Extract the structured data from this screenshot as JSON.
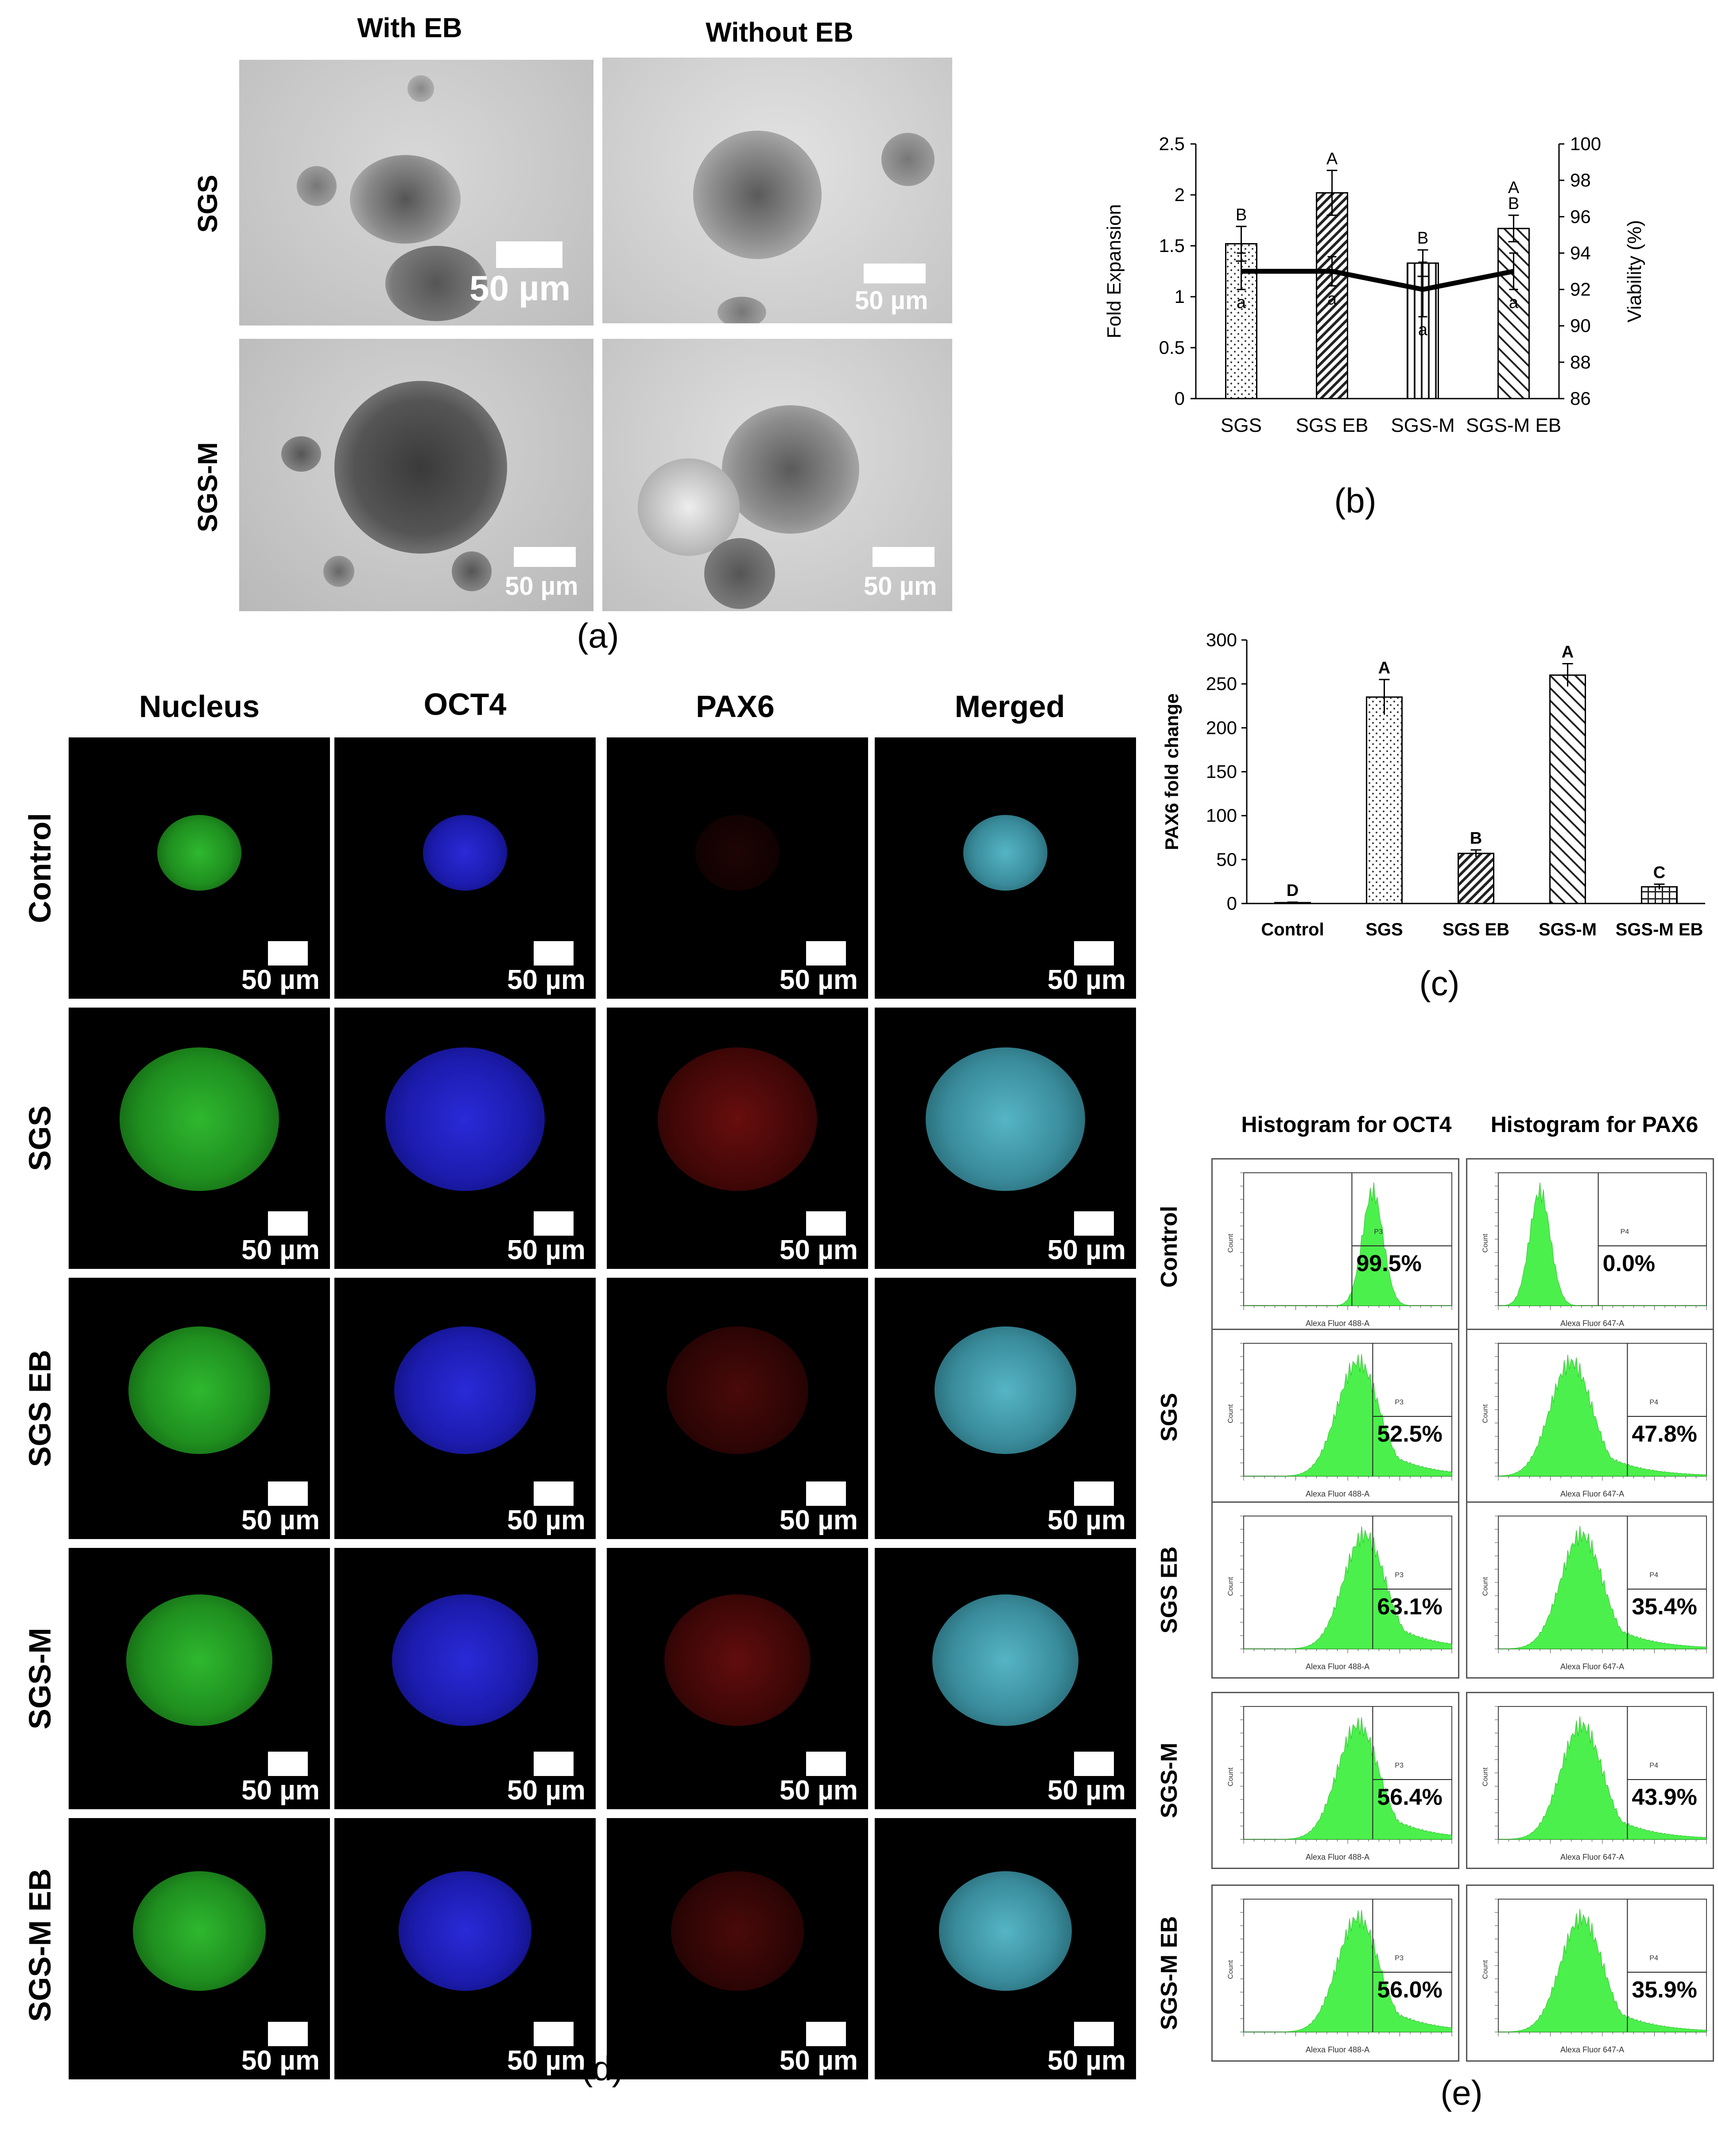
{
  "panel_a": {
    "col_headers": [
      "With EB",
      "Without EB"
    ],
    "row_labels": [
      "SGS",
      "SGS-M"
    ],
    "scale_labels": [
      "50 µm",
      "50 µm",
      "50 µm",
      "50 µm"
    ],
    "caption": "(a)"
  },
  "panel_b": {
    "caption": "(b)"
  },
  "panel_c": {
    "caption": "(c)"
  },
  "panel_d": {
    "col_headers": [
      "Nucleus",
      "OCT4",
      "PAX6",
      "Merged"
    ],
    "row_labels": [
      "Control",
      "SGS",
      "SGS EB",
      "SGS-M",
      "SGS-M EB"
    ],
    "scale_label": "50 µm",
    "caption": "(d)"
  },
  "panel_e": {
    "col_headers": [
      "Histogram for OCT4",
      "Histogram for PAX6"
    ],
    "row_labels": [
      "Control",
      "SGS",
      "SGS EB",
      "SGS-M",
      "SGS-M EB"
    ],
    "oct4_percent": [
      "99.5%",
      "52.5%",
      "63.1%",
      "56.4%",
      "56.0%"
    ],
    "pax6_percent": [
      "0.0%",
      "47.8%",
      "35.4%",
      "43.9%",
      "35.9%"
    ],
    "oct4_gate": "P3",
    "pax6_gate": "P4",
    "oct4_xlabel": "Alexa Fluor 488-A",
    "pax6_xlabel": "Alexa Fluor 647-A",
    "ylabel": "Count",
    "caption": "(e)"
  },
  "chart_data": [
    {
      "type": "bar",
      "panel": "b",
      "categories": [
        "SGS",
        "SGS EB",
        "SGS-M",
        "SGS-M EB"
      ],
      "series": [
        {
          "name": "Fold Expansion",
          "type": "bar",
          "axis": "left",
          "values": [
            1.52,
            2.02,
            1.33,
            1.67
          ],
          "errors": [
            0.17,
            0.22,
            0.13,
            0.13
          ],
          "letters": [
            "B",
            "A",
            "B",
            "A B"
          ],
          "patterns": [
            "dots",
            "diag-right",
            "vertical",
            "diag-left"
          ]
        },
        {
          "name": "Viability (%)",
          "type": "line",
          "axis": "right",
          "values": [
            93,
            93,
            92,
            93
          ],
          "errors": [
            1.0,
            0.8,
            1.5,
            1.0
          ],
          "letters": [
            "a",
            "a",
            "a",
            "a"
          ]
        }
      ],
      "ylabel": "Fold Expansion",
      "ylim": [
        0,
        2.5
      ],
      "yticks": [
        "0",
        "0.5",
        "1",
        "1.5",
        "2",
        "2.5"
      ],
      "y2label": "Viability (%)",
      "y2lim": [
        86,
        100
      ],
      "y2ticks": [
        "86",
        "88",
        "90",
        "92",
        "94",
        "96",
        "98",
        "100"
      ],
      "grid": false
    },
    {
      "type": "bar",
      "panel": "c",
      "categories": [
        "Control",
        "SGS",
        "SGS EB",
        "SGS-M",
        "SGS-M EB"
      ],
      "values": [
        1,
        235,
        57,
        260,
        19
      ],
      "errors": [
        0.5,
        20,
        4,
        13,
        3
      ],
      "letters": [
        "D",
        "A",
        "B",
        "A",
        "C"
      ],
      "patterns": [
        "none",
        "dots",
        "diag-right",
        "diag-left",
        "grid"
      ],
      "ylabel": "PAX6 fold change",
      "ylim": [
        0,
        300
      ],
      "yticks": [
        "0",
        "50",
        "100",
        "150",
        "200",
        "250",
        "300"
      ],
      "grid": false
    }
  ]
}
